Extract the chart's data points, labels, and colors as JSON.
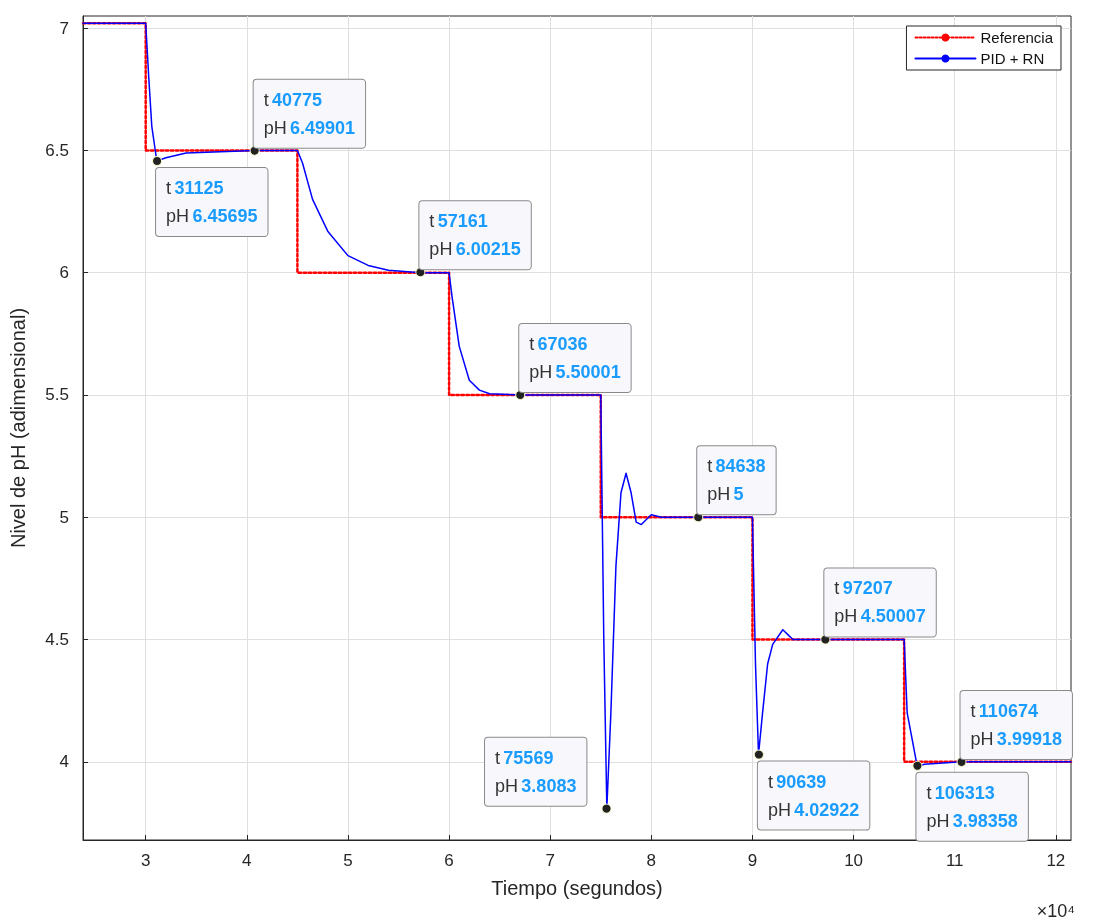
{
  "chart_data": {
    "type": "line",
    "xlabel": "Tiempo (segundos)",
    "ylabel": "Nivel de pH (adimensional)",
    "xlim": [
      2.38,
      12.15
    ],
    "xticks": [
      3,
      4,
      5,
      6,
      7,
      8,
      9,
      10,
      11,
      12
    ],
    "ylim": [
      3.68,
      7.05
    ],
    "yticks": [
      4,
      4.5,
      5,
      5.5,
      6,
      6.5,
      7
    ],
    "grid": true,
    "legend": "top right",
    "series": [
      {
        "name": "Referencia",
        "type": "step",
        "color": "#ff0000",
        "line_style": "dotted",
        "x": [
          2.38,
          3.0,
          4.5,
          6.0,
          7.5,
          9.0,
          10.5,
          12.15
        ],
        "values": [
          7.02,
          6.5,
          6.0,
          5.5,
          5.0,
          4.5,
          4.0,
          4.0
        ]
      },
      {
        "name": "PID + RN",
        "color": "#0000ff",
        "line_style": "solid",
        "x": [
          2.38,
          3.0,
          3.03,
          3.06,
          3.11,
          3.2,
          3.4,
          4.08,
          4.5,
          4.55,
          4.65,
          4.8,
          5.0,
          5.2,
          5.4,
          5.72,
          6.0,
          6.03,
          6.1,
          6.2,
          6.3,
          6.4,
          6.7,
          7.5,
          7.53,
          7.56,
          7.6,
          7.65,
          7.7,
          7.75,
          7.8,
          7.85,
          7.9,
          8.0,
          8.1,
          8.46,
          9.0,
          9.03,
          9.06,
          9.1,
          9.15,
          9.2,
          9.3,
          9.35,
          9.4,
          9.72,
          10.5,
          10.53,
          10.63,
          10.7,
          11.07,
          12.15
        ],
        "values": [
          7.02,
          7.02,
          6.8,
          6.6,
          6.457,
          6.47,
          6.49,
          6.5,
          6.5,
          6.45,
          6.3,
          6.17,
          6.07,
          6.03,
          6.01,
          6.0,
          6.0,
          5.9,
          5.7,
          5.56,
          5.52,
          5.505,
          5.5,
          5.5,
          4.5,
          3.81,
          4.2,
          4.8,
          5.1,
          5.18,
          5.1,
          4.98,
          4.97,
          5.01,
          5.0,
          5.0,
          5.0,
          4.4,
          4.03,
          4.2,
          4.4,
          4.48,
          4.54,
          4.52,
          4.5,
          4.5,
          4.5,
          4.2,
          3.98,
          3.99,
          4.0,
          4.0
        ]
      }
    ],
    "annotations": [
      {
        "text": "t 31125\npH 6.45695",
        "x": 3.1125,
        "y": 6.45695
      },
      {
        "text": "t 40775\npH 6.49901",
        "x": 4.0775,
        "y": 6.49901
      },
      {
        "text": "t 57161\npH 6.00215",
        "x": 5.7161,
        "y": 6.00215
      },
      {
        "text": "t 67036\npH 5.50001",
        "x": 6.7036,
        "y": 5.50001
      },
      {
        "text": "t 75569\npH 3.8083",
        "x": 7.5569,
        "y": 3.8083
      },
      {
        "text": "t 84638\npH 5",
        "x": 8.4638,
        "y": 5
      },
      {
        "text": "t 90639\npH 4.02922",
        "x": 9.0639,
        "y": 4.02922
      },
      {
        "text": "t 97207\npH 4.50007",
        "x": 9.7207,
        "y": 4.50007
      },
      {
        "text": "t 106313\npH 3.98358",
        "x": 10.6313,
        "y": 3.98358
      },
      {
        "text": "t 110674\npH 3.99918",
        "x": 11.0674,
        "y": 3.99918
      },
      "×10⁴"
    ]
  }
}
